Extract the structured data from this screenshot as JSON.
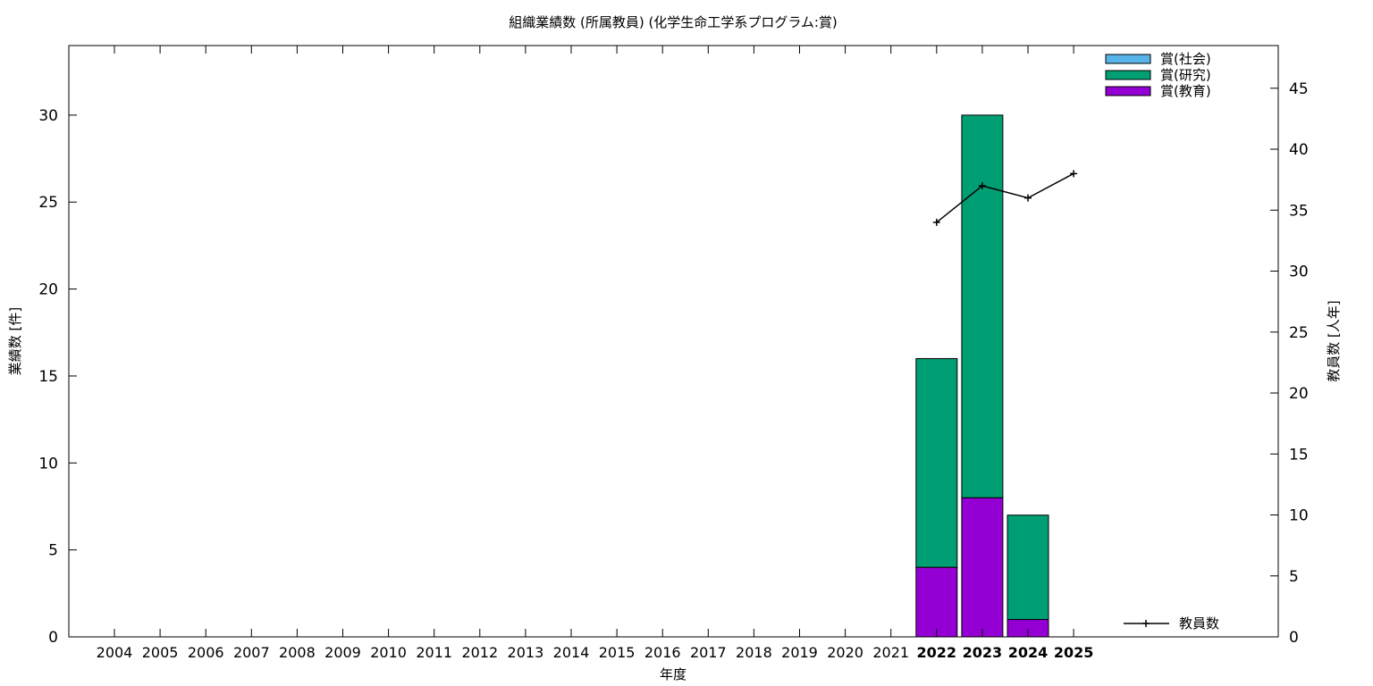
{
  "chart_data": {
    "type": "bar",
    "title": "組織業績数 (所属教員) (化学生命工学系プログラム:賞)",
    "xlabel": "年度",
    "ylabel": "業績数 [件]",
    "y2label": "教員数 [人年]",
    "categories": [
      "2004",
      "2005",
      "2006",
      "2007",
      "2008",
      "2009",
      "2010",
      "2011",
      "2012",
      "2013",
      "2014",
      "2015",
      "2016",
      "2017",
      "2018",
      "2019",
      "2020",
      "2021",
      "2022",
      "2023",
      "2024",
      "2025"
    ],
    "highlighted_categories": [
      "2022",
      "2023",
      "2024",
      "2025"
    ],
    "stacked": true,
    "series": [
      {
        "name": "賞(教育)",
        "color": "#9400d3",
        "values": [
          0,
          0,
          0,
          0,
          0,
          0,
          0,
          0,
          0,
          0,
          0,
          0,
          0,
          0,
          0,
          0,
          0,
          0,
          4,
          8,
          1,
          0
        ]
      },
      {
        "name": "賞(研究)",
        "color": "#009e73",
        "values": [
          0,
          0,
          0,
          0,
          0,
          0,
          0,
          0,
          0,
          0,
          0,
          0,
          0,
          0,
          0,
          0,
          0,
          0,
          12,
          22,
          6,
          0
        ]
      },
      {
        "name": "賞(社会)",
        "color": "#56b4e9",
        "values": [
          0,
          0,
          0,
          0,
          0,
          0,
          0,
          0,
          0,
          0,
          0,
          0,
          0,
          0,
          0,
          0,
          0,
          0,
          0,
          0,
          0,
          0
        ]
      }
    ],
    "line_series": {
      "name": "教員数",
      "color": "#000000",
      "axis": "y2",
      "x": [
        "2022",
        "2023",
        "2024",
        "2025"
      ],
      "values": [
        34,
        37,
        36,
        38
      ]
    },
    "ylim": [
      0,
      34
    ],
    "y_ticks": [
      0,
      5,
      10,
      15,
      20,
      25,
      30
    ],
    "y2lim": [
      0,
      48.5
    ],
    "y2_ticks": [
      0,
      5,
      10,
      15,
      20,
      25,
      30,
      35,
      40,
      45
    ],
    "legend_position": "top-right",
    "line_legend_position": "bottom-right",
    "grid": false
  }
}
